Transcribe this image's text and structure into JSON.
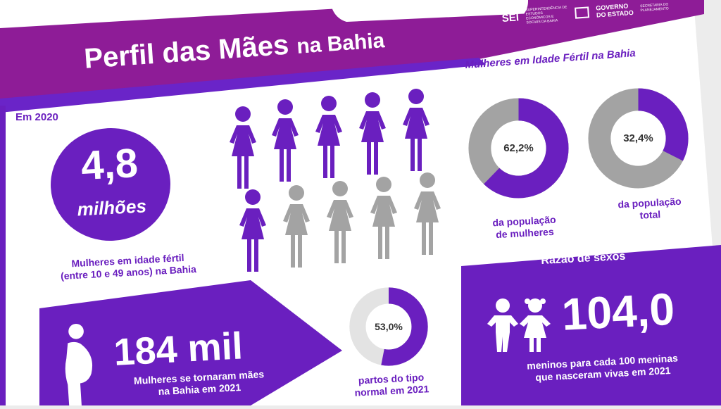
{
  "colors": {
    "purple": "#6a1fbf",
    "magenta": "#8e1c97",
    "grey": "#a3a3a3"
  },
  "header": {
    "title_main": "Perfil das Mães",
    "title_suffix": "na Bahia",
    "logo_sei": "SEI",
    "logo_sei_sub": "SUPERINTENDÊNCIA DE ESTUDOS ECONÔMICOS E SOCIAIS DA BAHIA",
    "logo_gov": [
      "GOVERNO",
      "DO ESTADO"
    ],
    "logo_sec": "SECRETARIA DO PLANEJAMENTO"
  },
  "fertile": {
    "year_label": "Em 2020",
    "value": "4,8",
    "unit": "milhões",
    "caption": [
      "Mulheres em idade fértil",
      "(entre 10 e 49 anos) na Bahia"
    ]
  },
  "figures": {
    "icon": "woman-figure-icon",
    "total": 10,
    "highlighted": 6
  },
  "donuts": {
    "title": "Mulheres em Idade Fértil na Bahia",
    "items": [
      {
        "value_label": "62,2%",
        "fraction": 0.622,
        "caption": [
          "da população",
          "de mulheres"
        ]
      },
      {
        "value_label": "32,4%",
        "fraction": 0.324,
        "caption": [
          "da população",
          "total"
        ]
      }
    ]
  },
  "mothers": {
    "icon": "pregnant-woman-icon",
    "value": "184 mil",
    "caption": [
      "Mulheres se tornaram mães",
      "na Bahia em 2021"
    ]
  },
  "births": {
    "value_label": "53,0%",
    "fraction": 0.53,
    "caption": [
      "partos do tipo",
      "normal em 2021"
    ]
  },
  "sex_ratio": {
    "title": "Razão de sexos",
    "icon": "children-icon",
    "value": "104,0",
    "caption": [
      "meninos para cada 100 meninas",
      "que nasceram vivas em 2021"
    ]
  }
}
